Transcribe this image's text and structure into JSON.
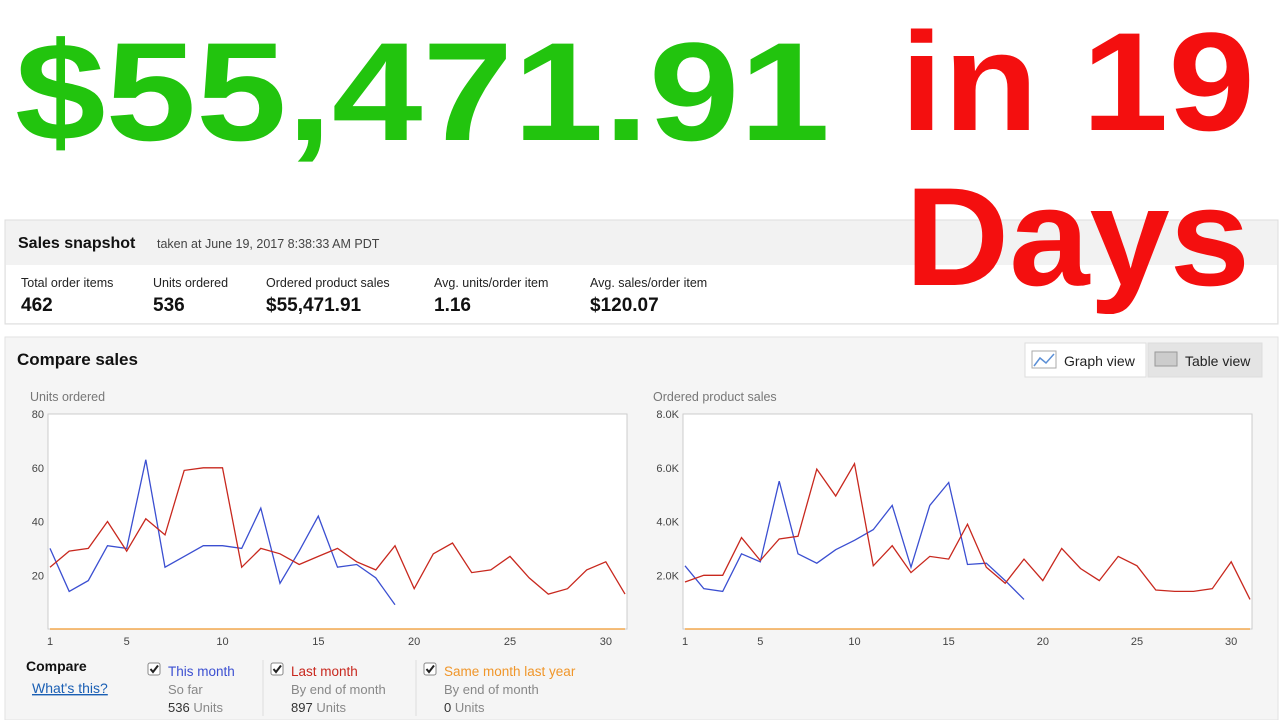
{
  "header": {
    "amount": "$55,471.91",
    "period_line1": "in 19",
    "period_line2": "Days"
  },
  "snapshot": {
    "title": "Sales snapshot",
    "subtitle": "taken at June 19, 2017 8:38:33 AM PDT",
    "metrics": [
      {
        "label": "Total order items",
        "value": "462"
      },
      {
        "label": "Units ordered",
        "value": "536"
      },
      {
        "label": "Ordered product sales",
        "value": "$55,471.91"
      },
      {
        "label": "Avg. units/order item",
        "value": "1.16"
      },
      {
        "label": "Avg. sales/order item",
        "value": "$120.07"
      }
    ]
  },
  "compare": {
    "title": "Compare sales",
    "buttons": [
      "Graph view",
      "Table view"
    ],
    "legend_title": "Compare",
    "link": "What's this?",
    "items": [
      {
        "name": "This month",
        "color": "#3b4fd1",
        "sub": "So far",
        "count": "536",
        "unit": "Units"
      },
      {
        "name": "Last month",
        "color": "#c8281e",
        "sub": "By end of month",
        "count": "897",
        "unit": "Units"
      },
      {
        "name": "Same month last year",
        "color": "#f0962a",
        "sub": "By end of month",
        "count": "0",
        "unit": "Units"
      }
    ]
  },
  "chart_data": [
    {
      "type": "line",
      "title": "Units ordered",
      "x": [
        1,
        2,
        3,
        4,
        5,
        6,
        7,
        8,
        9,
        10,
        11,
        12,
        13,
        14,
        15,
        16,
        17,
        18,
        19,
        20,
        21,
        22,
        23,
        24,
        25,
        26,
        27,
        28,
        29,
        30,
        31
      ],
      "xlim": [
        1,
        31
      ],
      "xticks": [
        1,
        5,
        10,
        15,
        20,
        25,
        30
      ],
      "ylim": [
        0,
        80
      ],
      "yticks": [
        20,
        40,
        60,
        80
      ],
      "grid": false,
      "series": [
        {
          "color": "#3b4fd1",
          "values": [
            30,
            14,
            18,
            31,
            30,
            63,
            23,
            27,
            31,
            31,
            30,
            45,
            17,
            29,
            42,
            23,
            24,
            19,
            9,
            null,
            null,
            null,
            null,
            null,
            null,
            null,
            null,
            null,
            null,
            null,
            null
          ]
        },
        {
          "color": "#c8281e",
          "values": [
            23,
            29,
            30,
            40,
            29,
            41,
            35,
            59,
            60,
            60,
            23,
            30,
            28,
            24,
            27,
            30,
            25,
            22,
            31,
            15,
            28,
            32,
            21,
            22,
            27,
            19,
            13,
            15,
            22,
            25,
            13
          ]
        },
        {
          "color": "#f0962a",
          "values": [
            0,
            0,
            0,
            0,
            0,
            0,
            0,
            0,
            0,
            0,
            0,
            0,
            0,
            0,
            0,
            0,
            0,
            0,
            0,
            0,
            0,
            0,
            0,
            0,
            0,
            0,
            0,
            0,
            0,
            0,
            0
          ]
        }
      ]
    },
    {
      "type": "line",
      "title": "Ordered product sales",
      "x": [
        1,
        2,
        3,
        4,
        5,
        6,
        7,
        8,
        9,
        10,
        11,
        12,
        13,
        14,
        15,
        16,
        17,
        18,
        19,
        20,
        21,
        22,
        23,
        24,
        25,
        26,
        27,
        28,
        29,
        30,
        31
      ],
      "xlim": [
        1,
        31
      ],
      "xticks": [
        1,
        5,
        10,
        15,
        20,
        25,
        30
      ],
      "ylim": [
        0,
        8000
      ],
      "yticks": [
        {
          "value": 2000,
          "label": "2.0K"
        },
        {
          "value": 4000,
          "label": "4.0K"
        },
        {
          "value": 6000,
          "label": "6.0K"
        },
        {
          "value": 8000,
          "label": "8.0K"
        }
      ],
      "grid": false,
      "series": [
        {
          "color": "#3b4fd1",
          "values": [
            2350,
            1500,
            1400,
            2800,
            2500,
            5500,
            2800,
            2450,
            2950,
            3300,
            3700,
            4600,
            2300,
            4600,
            5450,
            2400,
            2450,
            1800,
            1100,
            null,
            null,
            null,
            null,
            null,
            null,
            null,
            null,
            null,
            null,
            null,
            null
          ]
        },
        {
          "color": "#c8281e",
          "values": [
            1750,
            2000,
            2000,
            3400,
            2550,
            3350,
            3450,
            5950,
            4950,
            6150,
            2350,
            3100,
            2100,
            2700,
            2600,
            3900,
            2300,
            1700,
            2600,
            1800,
            3000,
            2250,
            1800,
            2700,
            2350,
            1450,
            1400,
            1400,
            1500,
            2500,
            1100
          ]
        },
        {
          "color": "#f0962a",
          "values": [
            0,
            0,
            0,
            0,
            0,
            0,
            0,
            0,
            0,
            0,
            0,
            0,
            0,
            0,
            0,
            0,
            0,
            0,
            0,
            0,
            0,
            0,
            0,
            0,
            0,
            0,
            0,
            0,
            0,
            0,
            0
          ]
        }
      ]
    }
  ]
}
